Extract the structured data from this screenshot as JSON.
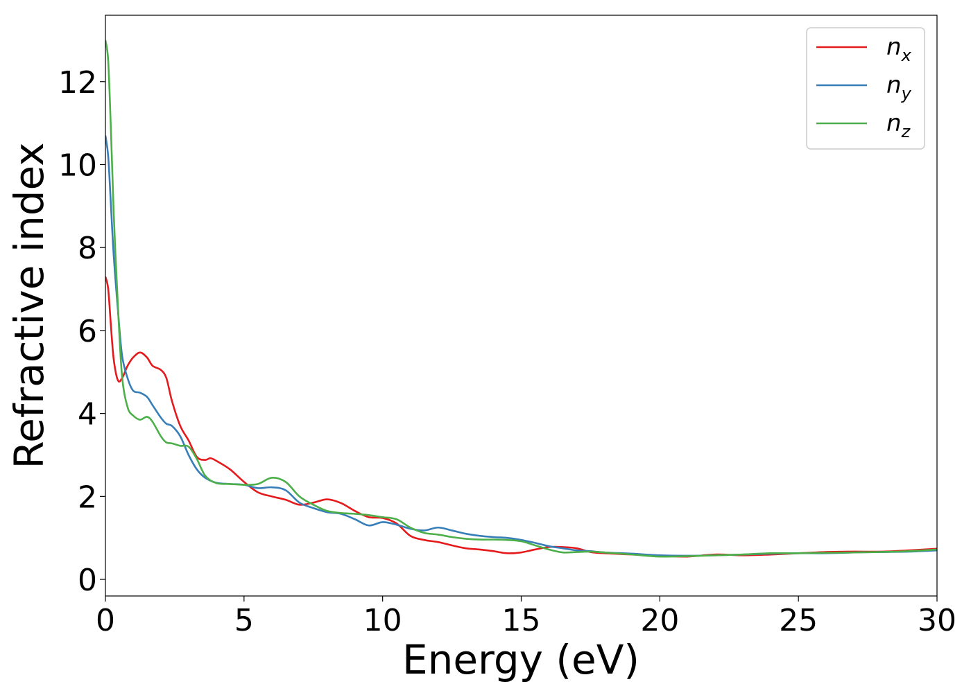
{
  "chart_data": {
    "type": "line",
    "xlabel": "Energy (eV)",
    "ylabel": "Refractive index",
    "xlim": [
      0,
      30
    ],
    "ylim": [
      -0.4,
      13.6
    ],
    "xticks": [
      0,
      5,
      10,
      15,
      20,
      25,
      30
    ],
    "yticks": [
      0,
      2,
      4,
      6,
      8,
      10,
      12
    ],
    "grid": false,
    "legend_position": "top-right",
    "series": [
      {
        "name": "n_x",
        "label_base": "n",
        "label_sub": "x",
        "color": "#e41a1c",
        "x": [
          0,
          0.1,
          0.2,
          0.3,
          0.45,
          0.6,
          0.8,
          1.0,
          1.25,
          1.5,
          1.7,
          2.0,
          2.2,
          2.4,
          2.7,
          3.0,
          3.3,
          3.6,
          3.8,
          4.1,
          4.5,
          5.0,
          5.5,
          6.0,
          6.5,
          7.0,
          7.5,
          8.0,
          8.5,
          9.0,
          9.5,
          10.0,
          10.5,
          11.0,
          11.5,
          12.0,
          12.5,
          13.0,
          13.5,
          14.0,
          14.5,
          15.0,
          15.5,
          16.0,
          16.5,
          17.0,
          17.5,
          18.0,
          19.0,
          20.0,
          21.0,
          22.0,
          23.0,
          24.0,
          25.0,
          26.0,
          27.0,
          28.0,
          29.0,
          30.0
        ],
        "y": [
          7.3,
          7.0,
          6.1,
          5.3,
          4.8,
          4.85,
          5.15,
          5.35,
          5.47,
          5.35,
          5.15,
          5.05,
          4.85,
          4.3,
          3.7,
          3.35,
          2.95,
          2.88,
          2.92,
          2.82,
          2.65,
          2.35,
          2.1,
          2.0,
          1.92,
          1.8,
          1.85,
          1.93,
          1.84,
          1.65,
          1.5,
          1.48,
          1.35,
          1.05,
          0.95,
          0.9,
          0.82,
          0.75,
          0.72,
          0.68,
          0.63,
          0.65,
          0.72,
          0.78,
          0.78,
          0.75,
          0.66,
          0.63,
          0.6,
          0.57,
          0.55,
          0.6,
          0.58,
          0.6,
          0.63,
          0.66,
          0.67,
          0.67,
          0.7,
          0.74
        ]
      },
      {
        "name": "n_y",
        "label_base": "n",
        "label_sub": "y",
        "color": "#377eb8",
        "x": [
          0,
          0.1,
          0.2,
          0.3,
          0.45,
          0.6,
          0.8,
          1.0,
          1.25,
          1.5,
          1.7,
          2.0,
          2.2,
          2.4,
          2.7,
          3.0,
          3.3,
          3.6,
          4.0,
          4.5,
          5.0,
          5.5,
          6.0,
          6.5,
          7.0,
          7.5,
          8.0,
          8.5,
          9.0,
          9.5,
          10.0,
          10.5,
          11.0,
          11.5,
          12.0,
          12.5,
          13.0,
          13.5,
          14.0,
          14.5,
          15.0,
          15.5,
          16.0,
          16.5,
          17.0,
          17.5,
          18.0,
          19.0,
          20.0,
          21.0,
          22.0,
          23.0,
          24.0,
          25.0,
          26.0,
          27.0,
          28.0,
          29.0,
          30.0
        ],
        "y": [
          10.7,
          10.2,
          9.0,
          7.8,
          6.5,
          5.4,
          4.85,
          4.55,
          4.5,
          4.4,
          4.2,
          3.9,
          3.75,
          3.7,
          3.45,
          3.0,
          2.65,
          2.45,
          2.33,
          2.3,
          2.28,
          2.2,
          2.22,
          2.15,
          1.85,
          1.72,
          1.62,
          1.58,
          1.45,
          1.3,
          1.38,
          1.32,
          1.22,
          1.18,
          1.25,
          1.18,
          1.1,
          1.05,
          1.02,
          1.0,
          0.95,
          0.88,
          0.8,
          0.75,
          0.7,
          0.68,
          0.65,
          0.62,
          0.58,
          0.57,
          0.58,
          0.6,
          0.62,
          0.63,
          0.63,
          0.65,
          0.66,
          0.67,
          0.7
        ]
      },
      {
        "name": "n_z",
        "label_base": "n",
        "label_sub": "z",
        "color": "#4daf4a",
        "x": [
          0,
          0.1,
          0.2,
          0.3,
          0.45,
          0.6,
          0.8,
          1.0,
          1.25,
          1.5,
          1.7,
          2.0,
          2.2,
          2.4,
          2.7,
          3.0,
          3.3,
          3.6,
          4.0,
          4.5,
          5.0,
          5.5,
          6.0,
          6.5,
          7.0,
          7.5,
          8.0,
          8.5,
          9.0,
          9.5,
          10.0,
          10.5,
          11.0,
          11.5,
          12.0,
          12.5,
          13.0,
          13.5,
          14.0,
          14.5,
          15.0,
          15.5,
          16.0,
          16.5,
          17.0,
          17.5,
          18.0,
          19.0,
          20.0,
          21.0,
          22.0,
          23.0,
          24.0,
          25.0,
          26.0,
          27.0,
          28.0,
          29.0,
          30.0
        ],
        "y": [
          13.0,
          12.5,
          10.8,
          8.8,
          6.6,
          4.9,
          4.15,
          3.95,
          3.85,
          3.92,
          3.8,
          3.45,
          3.3,
          3.28,
          3.22,
          3.2,
          2.9,
          2.5,
          2.32,
          2.3,
          2.28,
          2.3,
          2.45,
          2.35,
          2.0,
          1.8,
          1.65,
          1.6,
          1.58,
          1.55,
          1.5,
          1.45,
          1.25,
          1.12,
          1.08,
          1.02,
          0.98,
          0.96,
          0.96,
          0.95,
          0.92,
          0.82,
          0.72,
          0.65,
          0.66,
          0.67,
          0.65,
          0.6,
          0.55,
          0.56,
          0.58,
          0.6,
          0.63,
          0.63,
          0.64,
          0.65,
          0.66,
          0.68,
          0.72
        ]
      }
    ]
  }
}
